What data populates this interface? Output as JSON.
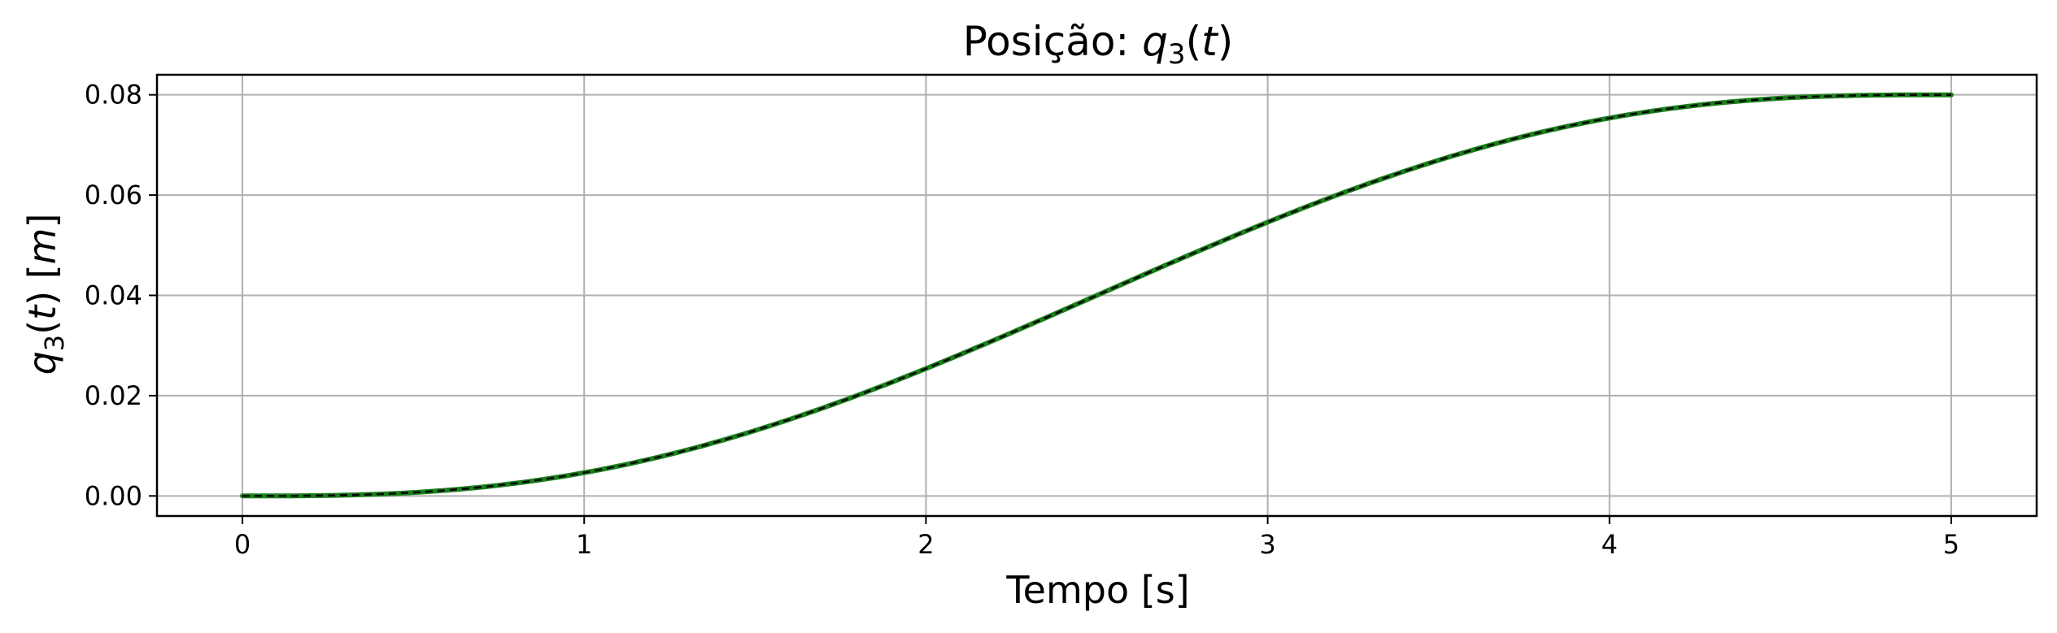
{
  "chart_data": {
    "type": "line",
    "title": "Posição: q3(t)",
    "title_prefix": "Posição: ",
    "xlabel": "Tempo [s]",
    "ylabel": "q3(t) [m]",
    "xlim": [
      -0.25,
      5.25
    ],
    "ylim": [
      -0.004,
      0.084
    ],
    "xticks": [
      0,
      1,
      2,
      3,
      4,
      5
    ],
    "yticks": [
      0.0,
      0.02,
      0.04,
      0.06,
      0.08
    ],
    "xtick_labels": [
      "0",
      "1",
      "2",
      "3",
      "4",
      "5"
    ],
    "ytick_labels": [
      "0.00",
      "0.02",
      "0.04",
      "0.06",
      "0.08"
    ],
    "grid": true,
    "legend": "none",
    "series": [
      {
        "color": "#1a7f1a",
        "overlay_style": "black dashed",
        "x": [
          0,
          0.25,
          0.5,
          0.75,
          1.0,
          1.25,
          1.5,
          1.75,
          2.0,
          2.25,
          2.5,
          2.75,
          3.0,
          3.25,
          3.5,
          3.75,
          4.0,
          4.25,
          4.5,
          4.75,
          5.0
        ],
        "y": [
          0.0,
          0.00037,
          0.00141,
          0.00304,
          0.00512,
          0.0075,
          0.01125,
          0.01531,
          0.02048,
          0.02592,
          0.032,
          0.03838,
          0.05,
          0.0516,
          0.06,
          0.066,
          0.071,
          0.076,
          0.079,
          0.08,
          0.08
        ]
      }
    ]
  }
}
